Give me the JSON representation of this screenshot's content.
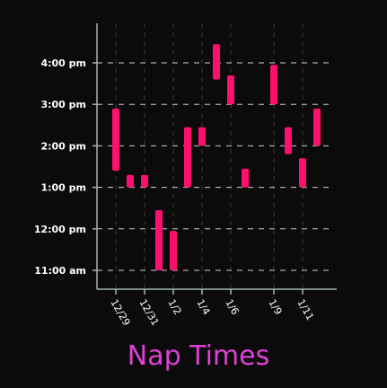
{
  "chart_data": {
    "type": "bar",
    "title": "Nap Times",
    "xlabel": "",
    "ylabel": "",
    "y_unit": "hour of day",
    "ylim": [
      10.6,
      17.1
    ],
    "y_ticks": [
      {
        "value": 11,
        "label": "11:00 am"
      },
      {
        "value": 12,
        "label": "12:00 pm"
      },
      {
        "value": 13,
        "label": "1:00 pm"
      },
      {
        "value": 14,
        "label": "2:00 pm"
      },
      {
        "value": 15,
        "label": "3:00 pm"
      },
      {
        "value": 16,
        "label": "4:00 pm"
      }
    ],
    "x_start": "12/28",
    "x_end": "1/13",
    "x_ticks": [
      "12/29",
      "12/31",
      "1/2",
      "1/4",
      "1/6",
      "1/9",
      "1/11"
    ],
    "grid": {
      "horizontal": "dashed",
      "vertical": "dashed-faint"
    },
    "colors": {
      "background": "#0b0b0b",
      "bar": "#ff0f6e",
      "axis": "#a7b6b3",
      "grid": "#cfcfcf",
      "title": "#e040d8"
    },
    "series": [
      {
        "naps": [
          {
            "date": "12/29",
            "start": 13.4,
            "end": 14.9
          },
          {
            "date": "12/30",
            "start": 13.0,
            "end": 13.3
          },
          {
            "date": "12/31",
            "start": 13.0,
            "end": 13.3
          },
          {
            "date": "1/1",
            "start": 11.0,
            "end": 12.45
          },
          {
            "date": "1/2",
            "start": 11.0,
            "end": 11.95
          },
          {
            "date": "1/3",
            "start": 13.0,
            "end": 14.45
          },
          {
            "date": "1/4",
            "start": 14.0,
            "end": 14.45
          },
          {
            "date": "1/5",
            "start": 15.6,
            "end": 16.45
          },
          {
            "date": "1/6",
            "start": 15.0,
            "end": 15.7
          },
          {
            "date": "1/7",
            "start": 13.0,
            "end": 13.45
          },
          {
            "date": "1/9",
            "start": 15.0,
            "end": 15.95
          },
          {
            "date": "1/10",
            "start": 13.8,
            "end": 14.45
          },
          {
            "date": "1/11",
            "start": 13.0,
            "end": 13.7
          },
          {
            "date": "1/12",
            "start": 14.0,
            "end": 14.9
          }
        ]
      }
    ]
  }
}
